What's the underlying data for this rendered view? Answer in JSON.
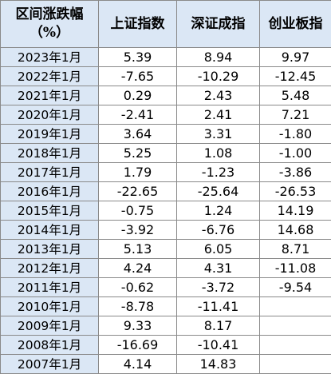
{
  "table": {
    "headers": [
      "区间涨跌幅\n（%）",
      "上证指数",
      "深证成指",
      "创业板指"
    ],
    "rows": [
      [
        "2023年1月",
        "5.39",
        "8.94",
        "9.97"
      ],
      [
        "2022年1月",
        "-7.65",
        "-10.29",
        "-12.45"
      ],
      [
        "2021年1月",
        "0.29",
        "2.43",
        "5.48"
      ],
      [
        "2020年1月",
        "-2.41",
        "2.41",
        "7.21"
      ],
      [
        "2019年1月",
        "3.64",
        "3.31",
        "-1.80"
      ],
      [
        "2018年1月",
        "5.25",
        "1.08",
        "-1.00"
      ],
      [
        "2017年1月",
        "1.79",
        "-1.23",
        "-3.86"
      ],
      [
        "2016年1月",
        "-22.65",
        "-25.64",
        "-26.53"
      ],
      [
        "2015年1月",
        "-0.75",
        "1.24",
        "14.19"
      ],
      [
        "2014年1月",
        "-3.92",
        "-6.76",
        "14.68"
      ],
      [
        "2013年1月",
        "5.13",
        "6.05",
        "8.71"
      ],
      [
        "2012年1月",
        "4.24",
        "4.31",
        "-11.08"
      ],
      [
        "2011年1月",
        "-0.62",
        "-3.72",
        "-9.54"
      ],
      [
        "2010年1月",
        "-8.78",
        "-11.41",
        ""
      ],
      [
        "2009年1月",
        "9.33",
        "8.17",
        ""
      ],
      [
        "2008年1月",
        "-16.69",
        "-10.41",
        ""
      ],
      [
        "2007年1月",
        "4.14",
        "14.83",
        ""
      ]
    ]
  },
  "colors": {
    "header_bg": "#dbe7f5",
    "date_bg": "#dbe7f5",
    "cell_bg": "#ffffff",
    "border": "#8a8a8a",
    "text": "#000000"
  }
}
